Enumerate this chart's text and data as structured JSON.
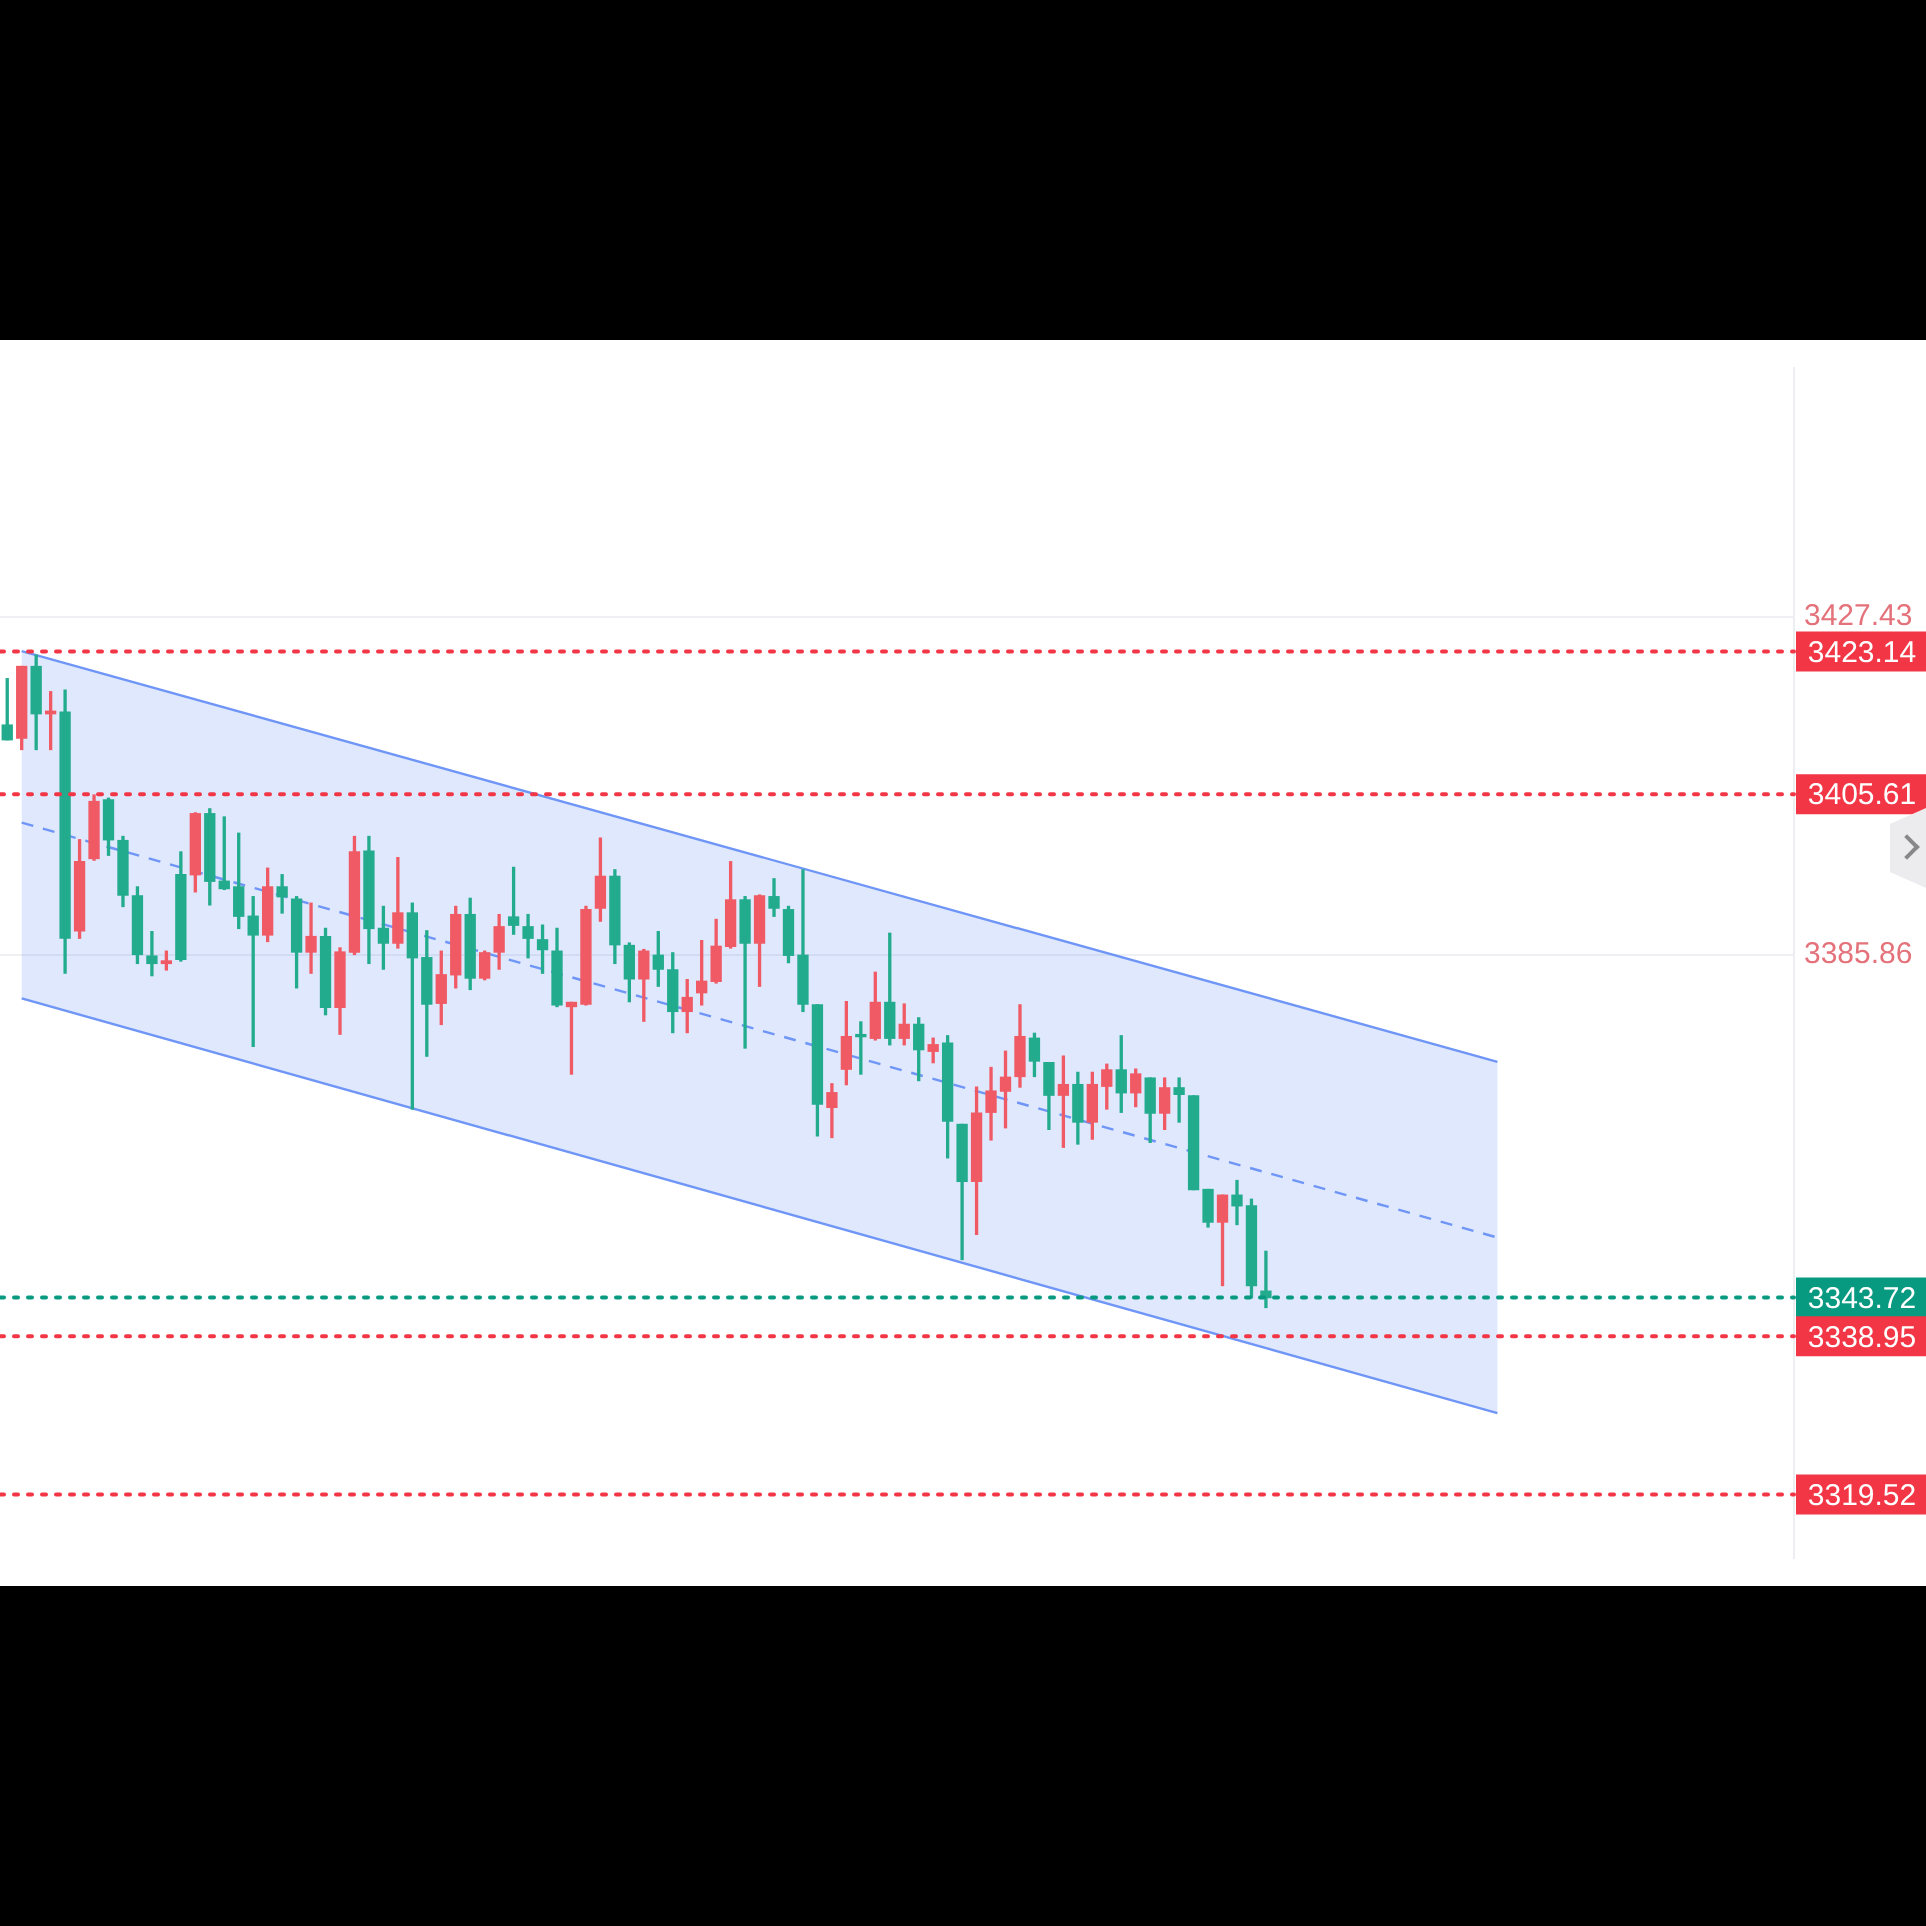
{
  "chart_data": {
    "type": "candlestick",
    "tick_labels": "y",
    "grid": "y",
    "legend": false,
    "categories": [
      null,
      null,
      null,
      null,
      null,
      null,
      null,
      null,
      null,
      null,
      null,
      null,
      null,
      null,
      null,
      null,
      null,
      null,
      null,
      null,
      null,
      null,
      null,
      null,
      null,
      null,
      null,
      null,
      null,
      null,
      null,
      null,
      null,
      null,
      null,
      null,
      null,
      null,
      null,
      null,
      null,
      null,
      null,
      null,
      null,
      null,
      null,
      null,
      null,
      null,
      null,
      null,
      null,
      null,
      null,
      null,
      null,
      null,
      null,
      null,
      null,
      null,
      null,
      null,
      null,
      null,
      null,
      null,
      null,
      null,
      null,
      null,
      null,
      null,
      null,
      null,
      null,
      null,
      null,
      null,
      null,
      null,
      null,
      null,
      null,
      null,
      null,
      null,
      null,
      null,
      null,
      null,
      null,
      null,
      null,
      null,
      null,
      null,
      null,
      null,
      null,
      null,
      null,
      null,
      null,
      null,
      null,
      null,
      null,
      null,
      null,
      null,
      null,
      null,
      null,
      null,
      null,
      null,
      null,
      null,
      null,
      null,
      null,
      null
    ],
    "ohlc": [
      [
        3414.1,
        3419.8,
        3412.3,
        3412.3
      ],
      [
        3412.5,
        3421.3,
        3411.1,
        3421.3
      ],
      [
        3421.3,
        3422.7,
        3411.1,
        3415.5
      ],
      [
        3415.5,
        3418.2,
        3411.1,
        3415.8
      ],
      [
        3415.7,
        3418.4,
        3383.6,
        3387.9
      ],
      [
        3388.8,
        3400.0,
        3387.9,
        3397.3
      ],
      [
        3397.7,
        3405.5,
        3397.5,
        3404.7
      ],
      [
        3404.9,
        3405.1,
        3398.1,
        3400.0
      ],
      [
        3399.9,
        3400.4,
        3391.8,
        3393.2
      ],
      [
        3393.1,
        3394.2,
        3384.8,
        3385.9
      ],
      [
        3385.7,
        3388.7,
        3383.3,
        3384.8
      ],
      [
        3384.8,
        3386.3,
        3384.0,
        3385.1
      ],
      [
        3395.7,
        3398.5,
        3385.1,
        3385.3
      ],
      [
        3395.7,
        3403.3,
        3393.6,
        3403.2
      ],
      [
        3403.2,
        3403.8,
        3392.0,
        3394.9
      ],
      [
        3394.9,
        3402.8,
        3393.9,
        3394.0
      ],
      [
        3394.2,
        3400.8,
        3389.1,
        3390.6
      ],
      [
        3390.6,
        3393.0,
        3374.6,
        3388.3
      ],
      [
        3388.3,
        3396.5,
        3387.5,
        3394.2
      ],
      [
        3394.2,
        3395.7,
        3391.0,
        3393.0
      ],
      [
        3392.7,
        3393.0,
        3381.8,
        3386.2
      ],
      [
        3386.2,
        3392.2,
        3383.6,
        3388.1
      ],
      [
        3388.1,
        3389.1,
        3378.5,
        3379.4
      ],
      [
        3379.4,
        3386.7,
        3376.1,
        3386.2
      ],
      [
        3386.2,
        3400.4,
        3385.9,
        3398.5
      ],
      [
        3398.6,
        3400.4,
        3384.8,
        3389.1
      ],
      [
        3389.1,
        3391.8,
        3384.1,
        3387.3
      ],
      [
        3387.3,
        3397.8,
        3386.7,
        3391.0
      ],
      [
        3391.0,
        3392.2,
        3366.9,
        3385.5
      ],
      [
        3385.5,
        3388.8,
        3373.4,
        3379.8
      ],
      [
        3379.9,
        3386.3,
        3377.3,
        3383.4
      ],
      [
        3383.4,
        3391.8,
        3381.8,
        3390.8
      ],
      [
        3390.8,
        3392.8,
        3381.6,
        3383.0
      ],
      [
        3383.0,
        3386.3,
        3382.8,
        3386.1
      ],
      [
        3386.2,
        3390.8,
        3384.1,
        3389.3
      ],
      [
        3390.5,
        3396.6,
        3388.4,
        3389.5
      ],
      [
        3389.3,
        3390.8,
        3385.5,
        3387.9
      ],
      [
        3387.7,
        3389.5,
        3383.6,
        3386.5
      ],
      [
        3386.3,
        3389.1,
        3379.5,
        3379.7
      ],
      [
        3379.5,
        3380.0,
        3371.2,
        3380.0
      ],
      [
        3379.8,
        3391.8,
        3379.7,
        3391.4
      ],
      [
        3391.6,
        3400.2,
        3390.0,
        3395.5
      ],
      [
        3395.5,
        3396.3,
        3384.8,
        3387.1
      ],
      [
        3387.0,
        3387.3,
        3380.1,
        3382.9
      ],
      [
        3382.9,
        3386.5,
        3377.7,
        3386.3
      ],
      [
        3385.8,
        3388.7,
        3382.0,
        3384.1
      ],
      [
        3384.0,
        3386.1,
        3376.3,
        3378.9
      ],
      [
        3378.9,
        3382.8,
        3376.3,
        3380.6
      ],
      [
        3381.2,
        3387.6,
        3379.7,
        3382.6
      ],
      [
        3382.6,
        3390.2,
        3382.4,
        3386.9
      ],
      [
        3386.9,
        3397.3,
        3386.7,
        3392.6
      ],
      [
        3392.6,
        3393.0,
        3374.4,
        3387.3
      ],
      [
        3387.3,
        3393.2,
        3382.0,
        3393.1
      ],
      [
        3393.0,
        3395.2,
        3390.6,
        3391.6
      ],
      [
        3391.4,
        3391.8,
        3384.9,
        3385.8
      ],
      [
        3385.8,
        3396.3,
        3378.9,
        3379.8
      ],
      [
        3379.7,
        3379.7,
        3363.6,
        3367.5
      ],
      [
        3367.1,
        3370.0,
        3363.4,
        3368.9
      ],
      [
        3371.8,
        3380.1,
        3369.9,
        3375.8
      ],
      [
        3376.0,
        3377.6,
        3371.2,
        3375.8
      ],
      [
        3375.6,
        3383.7,
        3375.4,
        3380.0
      ],
      [
        3380.0,
        3388.5,
        3374.8,
        3375.6
      ],
      [
        3375.6,
        3379.8,
        3374.8,
        3377.3
      ],
      [
        3377.3,
        3378.1,
        3370.4,
        3374.2
      ],
      [
        3374.0,
        3375.6,
        3372.6,
        3374.8
      ],
      [
        3375.0,
        3375.9,
        3360.9,
        3365.4
      ],
      [
        3365.0,
        3365.0,
        3348.4,
        3358.0
      ],
      [
        3358.0,
        3369.6,
        3351.5,
        3366.4
      ],
      [
        3366.5,
        3372.0,
        3363.1,
        3369.1
      ],
      [
        3369.1,
        3374.0,
        3364.6,
        3370.8
      ],
      [
        3370.9,
        3379.7,
        3369.6,
        3375.8
      ],
      [
        3375.6,
        3376.2,
        3370.9,
        3372.8
      ],
      [
        3372.6,
        3372.6,
        3364.4,
        3368.6
      ],
      [
        3368.6,
        3373.4,
        3362.2,
        3369.9
      ],
      [
        3369.9,
        3371.4,
        3362.6,
        3365.3
      ],
      [
        3365.3,
        3371.4,
        3363.2,
        3369.9
      ],
      [
        3369.7,
        3372.4,
        3366.9,
        3371.7
      ],
      [
        3371.7,
        3375.9,
        3366.5,
        3368.9
      ],
      [
        3368.9,
        3371.8,
        3367.2,
        3371.2
      ],
      [
        3370.7,
        3370.7,
        3362.8,
        3366.4
      ],
      [
        3366.4,
        3370.7,
        3364.4,
        3369.5
      ],
      [
        3369.5,
        3370.7,
        3365.3,
        3368.7
      ],
      [
        3368.5,
        3368.5,
        3357.0,
        3357.0
      ],
      [
        3357.0,
        3357.0,
        3352.4,
        3353.0
      ],
      [
        3353.0,
        3356.3,
        3345.2,
        3356.3
      ],
      [
        3356.3,
        3358.1,
        3352.7,
        3355.0
      ],
      [
        3355.0,
        3355.8,
        3343.7,
        3345.2
      ],
      [
        3344.5,
        3349.4,
        3342.5,
        3343.72
      ],
      null,
      null,
      null,
      null,
      null,
      null,
      null,
      null,
      null,
      null,
      null,
      null,
      null,
      null,
      null,
      null,
      null,
      null,
      null,
      null,
      null,
      null,
      null,
      null,
      null,
      null,
      null,
      null,
      null,
      null,
      null,
      null,
      null,
      null,
      null,
      null
    ],
    "series": [
      {
        "type": "line",
        "color": "#6f96f7",
        "line_style": "solid",
        "values": [
          null,
          3423.2,
          null,
          null,
          null,
          null,
          null,
          null,
          null,
          null,
          null,
          null,
          null,
          null,
          null,
          null,
          null,
          null,
          null,
          null,
          null,
          null,
          null,
          null,
          null,
          null,
          null,
          null,
          null,
          null,
          null,
          null,
          null,
          null,
          null,
          null,
          null,
          null,
          null,
          null,
          null,
          null,
          null,
          null,
          null,
          null,
          null,
          null,
          null,
          null,
          null,
          null,
          null,
          null,
          null,
          null,
          null,
          null,
          null,
          null,
          null,
          null,
          null,
          null,
          null,
          null,
          null,
          null,
          null,
          null,
          null,
          null,
          null,
          null,
          null,
          null,
          null,
          null,
          null,
          null,
          null,
          null,
          null,
          null,
          null,
          null,
          null,
          null,
          null,
          null,
          null,
          null,
          null,
          null,
          null,
          null,
          null,
          null,
          null,
          null,
          null,
          null,
          null,
          3372.7,
          null,
          null,
          null,
          null,
          null,
          null,
          null,
          null,
          null,
          null,
          null,
          null,
          null,
          null,
          null,
          null,
          null,
          null,
          null,
          null
        ]
      },
      {
        "type": "line",
        "color": "#6f96f7",
        "line_style": "solid",
        "values": [
          null,
          3380.5,
          null,
          null,
          null,
          null,
          null,
          null,
          null,
          null,
          null,
          null,
          null,
          null,
          null,
          null,
          null,
          null,
          null,
          null,
          null,
          null,
          null,
          null,
          null,
          null,
          null,
          null,
          null,
          null,
          null,
          null,
          null,
          null,
          null,
          null,
          null,
          null,
          null,
          null,
          null,
          null,
          null,
          null,
          null,
          null,
          null,
          null,
          null,
          null,
          null,
          null,
          null,
          null,
          null,
          null,
          null,
          null,
          null,
          null,
          null,
          null,
          null,
          null,
          null,
          null,
          null,
          null,
          null,
          null,
          null,
          null,
          null,
          null,
          null,
          null,
          null,
          null,
          null,
          null,
          null,
          null,
          null,
          null,
          null,
          null,
          null,
          null,
          null,
          null,
          null,
          null,
          null,
          null,
          null,
          null,
          null,
          null,
          null,
          null,
          null,
          null,
          null,
          3329.5,
          null,
          null,
          null,
          null,
          null,
          null,
          null,
          null,
          null,
          null,
          null,
          null,
          null,
          null,
          null,
          null,
          null,
          null,
          null,
          null
        ]
      },
      {
        "type": "line",
        "color": "#6f96f7",
        "line_style": "dashed",
        "values": [
          null,
          3402.1,
          null,
          null,
          null,
          null,
          null,
          null,
          null,
          null,
          null,
          null,
          null,
          null,
          null,
          null,
          null,
          null,
          null,
          null,
          null,
          null,
          null,
          null,
          null,
          null,
          null,
          null,
          null,
          null,
          null,
          null,
          null,
          null,
          null,
          null,
          null,
          null,
          null,
          null,
          null,
          null,
          null,
          null,
          null,
          null,
          null,
          null,
          null,
          null,
          null,
          null,
          null,
          null,
          null,
          null,
          null,
          null,
          null,
          null,
          null,
          null,
          null,
          null,
          null,
          null,
          null,
          null,
          null,
          null,
          null,
          null,
          null,
          null,
          null,
          null,
          null,
          null,
          null,
          null,
          null,
          null,
          null,
          null,
          null,
          null,
          null,
          null,
          null,
          null,
          null,
          null,
          null,
          null,
          null,
          null,
          null,
          null,
          null,
          null,
          null,
          null,
          null,
          3351.1,
          null,
          null,
          null,
          null,
          null,
          null,
          null,
          null,
          null,
          null,
          null,
          null,
          null,
          null,
          null,
          null,
          null,
          null,
          null,
          null
        ],
        "lower": [
          null,
          3380.5,
          null,
          null,
          null,
          null,
          null,
          null,
          null,
          null,
          null,
          null,
          null,
          null,
          null,
          null,
          null,
          null,
          null,
          null,
          null,
          null,
          null,
          null,
          null,
          null,
          null,
          null,
          null,
          null,
          null,
          null,
          null,
          null,
          null,
          null,
          null,
          null,
          null,
          null,
          null,
          null,
          null,
          null,
          null,
          null,
          null,
          null,
          null,
          null,
          null,
          null,
          null,
          null,
          null,
          null,
          null,
          null,
          null,
          null,
          null,
          null,
          null,
          null,
          null,
          null,
          null,
          null,
          null,
          null,
          null,
          null,
          null,
          null,
          null,
          null,
          null,
          null,
          null,
          null,
          null,
          null,
          null,
          null,
          null,
          null,
          null,
          null,
          null,
          null,
          null,
          null,
          null,
          null,
          null,
          null,
          null,
          null,
          null,
          null,
          null,
          null,
          null,
          3329.5,
          null,
          null,
          null,
          null,
          null,
          null,
          null,
          null,
          null,
          null,
          null,
          null,
          null,
          null,
          null,
          null,
          null,
          null,
          null,
          null
        ],
        "upper": [
          null,
          3423.2,
          null,
          null,
          null,
          null,
          null,
          null,
          null,
          null,
          null,
          null,
          null,
          null,
          null,
          null,
          null,
          null,
          null,
          null,
          null,
          null,
          null,
          null,
          null,
          null,
          null,
          null,
          null,
          null,
          null,
          null,
          null,
          null,
          null,
          null,
          null,
          null,
          null,
          null,
          null,
          null,
          null,
          null,
          null,
          null,
          null,
          null,
          null,
          null,
          null,
          null,
          null,
          null,
          null,
          null,
          null,
          null,
          null,
          null,
          null,
          null,
          null,
          null,
          null,
          null,
          null,
          null,
          null,
          null,
          null,
          null,
          null,
          null,
          null,
          null,
          null,
          null,
          null,
          null,
          null,
          null,
          null,
          null,
          null,
          null,
          null,
          null,
          null,
          null,
          null,
          null,
          null,
          null,
          null,
          null,
          null,
          null,
          null,
          null,
          null,
          null,
          null,
          3372.7,
          null,
          null,
          null,
          null,
          null,
          null,
          null,
          null,
          null,
          null,
          null,
          null,
          null,
          null,
          null,
          null,
          null,
          null,
          null,
          null
        ]
      }
    ],
    "ylim": [
      3311.7,
      3458.0
    ],
    "yticks": [
      3427.43,
      3385.86
    ],
    "ref_lines": [
      {
        "axis": "y",
        "value": 3423.14,
        "label": "3423.14",
        "color": "#f23645",
        "line_style": "dotted"
      },
      {
        "axis": "y",
        "value": 3405.61,
        "label": "3405.61",
        "color": "#f23645",
        "line_style": "dotted"
      },
      {
        "axis": "y",
        "value": 3343.72,
        "label": "3343.72",
        "color": "#089981",
        "line_style": "dotted"
      },
      {
        "axis": "y",
        "value": 3338.95,
        "label": "3338.95",
        "color": "#f23645",
        "line_style": "dotted"
      },
      {
        "axis": "y",
        "value": 3319.52,
        "label": "3319.52",
        "color": "#f23645",
        "line_style": "dotted"
      }
    ]
  }
}
